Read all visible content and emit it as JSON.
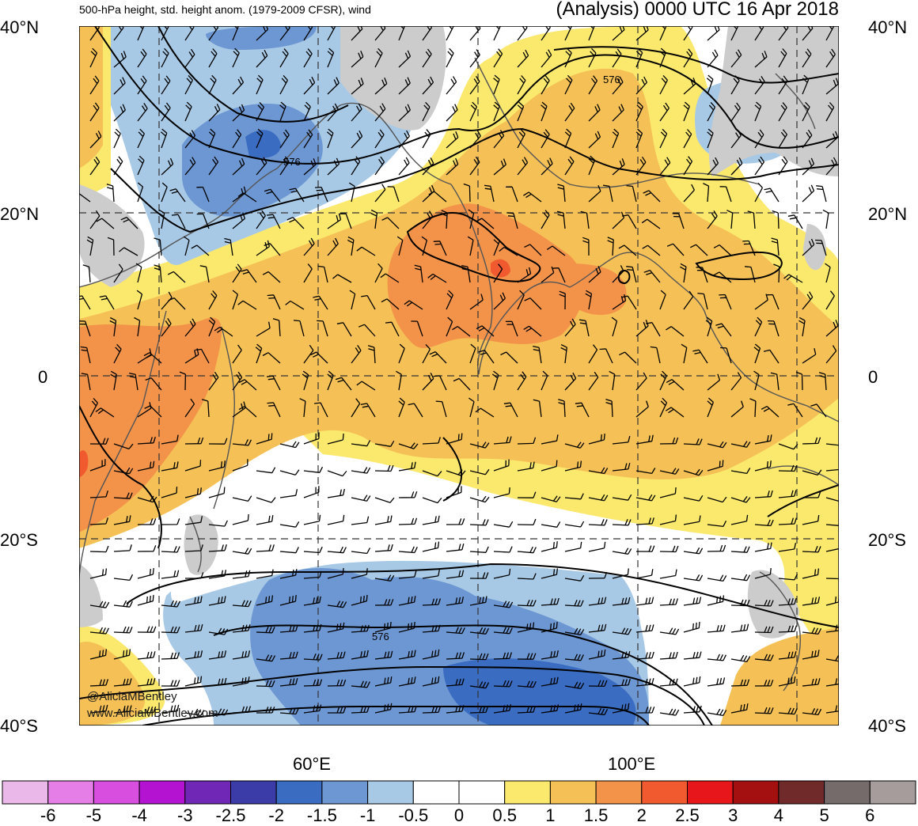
{
  "header": {
    "title": "500-hPa height, std. height anom. (1979-2009 CFSR), wind",
    "valid": "(Analysis) 0000 UTC 16 Apr 2018"
  },
  "axes": {
    "lat_labels": [
      "40°N",
      "20°N",
      "0",
      "20°S",
      "40°S"
    ],
    "lon_labels": [
      "60°E",
      "100°E"
    ]
  },
  "contour_labels": [
    "576",
    "576",
    "576"
  ],
  "watermark": {
    "handle": "@AliciaMBentley",
    "site": "www.AliciaMBentley.com"
  },
  "colorbar": {
    "labels": [
      "-6",
      "-5",
      "-4",
      "-3",
      "-2.5",
      "-2",
      "-1.5",
      "-1",
      "-0.5",
      "0",
      "0.5",
      "1",
      "1.5",
      "2",
      "2.5",
      "3",
      "4",
      "5",
      "6"
    ],
    "colors": [
      "#ebb8ea",
      "#e57ee6",
      "#d84fe0",
      "#b414d2",
      "#7027b6",
      "#3c3ca8",
      "#3a6cc2",
      "#6d97d2",
      "#a7c9e6",
      "#ffffff",
      "#ffffff",
      "#fbe96e",
      "#f5c156",
      "#f3934a",
      "#f15a2e",
      "#e6161a",
      "#a4100f",
      "#6f2a29",
      "#766b6b",
      "#a69c9b"
    ]
  },
  "palette": {
    "land": "#cccccc",
    "coast": "#555555",
    "grid": "#333333"
  }
}
